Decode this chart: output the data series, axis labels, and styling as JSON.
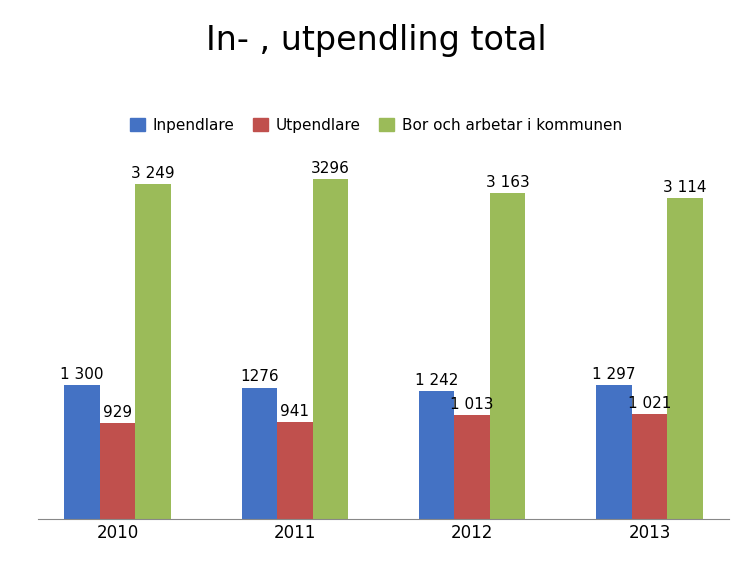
{
  "title": "In- , utpendling total",
  "years": [
    "2010",
    "2011",
    "2012",
    "2013"
  ],
  "inpendlare": [
    1300,
    1276,
    1242,
    1297
  ],
  "utpendlare": [
    929,
    941,
    1013,
    1021
  ],
  "bor_och_arbetar": [
    3249,
    3296,
    3163,
    3114
  ],
  "inpendlare_labels": [
    "1 300",
    "1276",
    "1 242",
    "1 297"
  ],
  "utpendlare_labels": [
    "929",
    "941",
    "1 013",
    "1 021"
  ],
  "bor_labels": [
    "3 249",
    "3296",
    "3 163",
    "3 114"
  ],
  "color_inpendlare": "#4472C4",
  "color_utpendlare": "#C0504D",
  "color_bor": "#9BBB59",
  "legend_inpendlare": "Inpendlare",
  "legend_utpendlare": "Utpendlare",
  "legend_bor": "Bor och arbetar i kommunen",
  "bar_width": 0.2,
  "ylim": [
    0,
    3800
  ],
  "background_color": "#FFFFFF",
  "title_fontsize": 24,
  "label_fontsize": 11,
  "tick_fontsize": 12,
  "legend_fontsize": 11
}
